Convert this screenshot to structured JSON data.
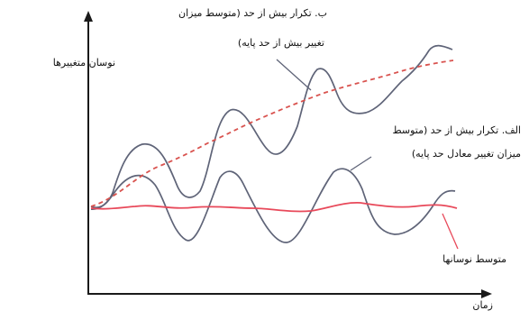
{
  "axes": {
    "y_label": "نوسان متغییرها",
    "x_label": "زمان"
  },
  "annotations": {
    "b": {
      "line1": "ب. تکرار بیش از حد (متوسط میزان",
      "line2": "تغییر بیش از حد پایه)"
    },
    "a": {
      "line1": "الف. تکرار بیش از حد (متوسط",
      "line2": "میزان تغییر معادل حد پایه)"
    },
    "mean": "متوسط نوسانها"
  },
  "colors": {
    "axis": "#1a1a1a",
    "curve": "#5f6478",
    "mean_line": "#e8495a",
    "trend_line": "#d9534f",
    "text": "#111111"
  },
  "series": [
    {
      "style": "solid-gray"
    },
    {
      "style": "solid-gray"
    },
    {
      "style": "solid-red"
    },
    {
      "style": "dashed-red"
    }
  ]
}
